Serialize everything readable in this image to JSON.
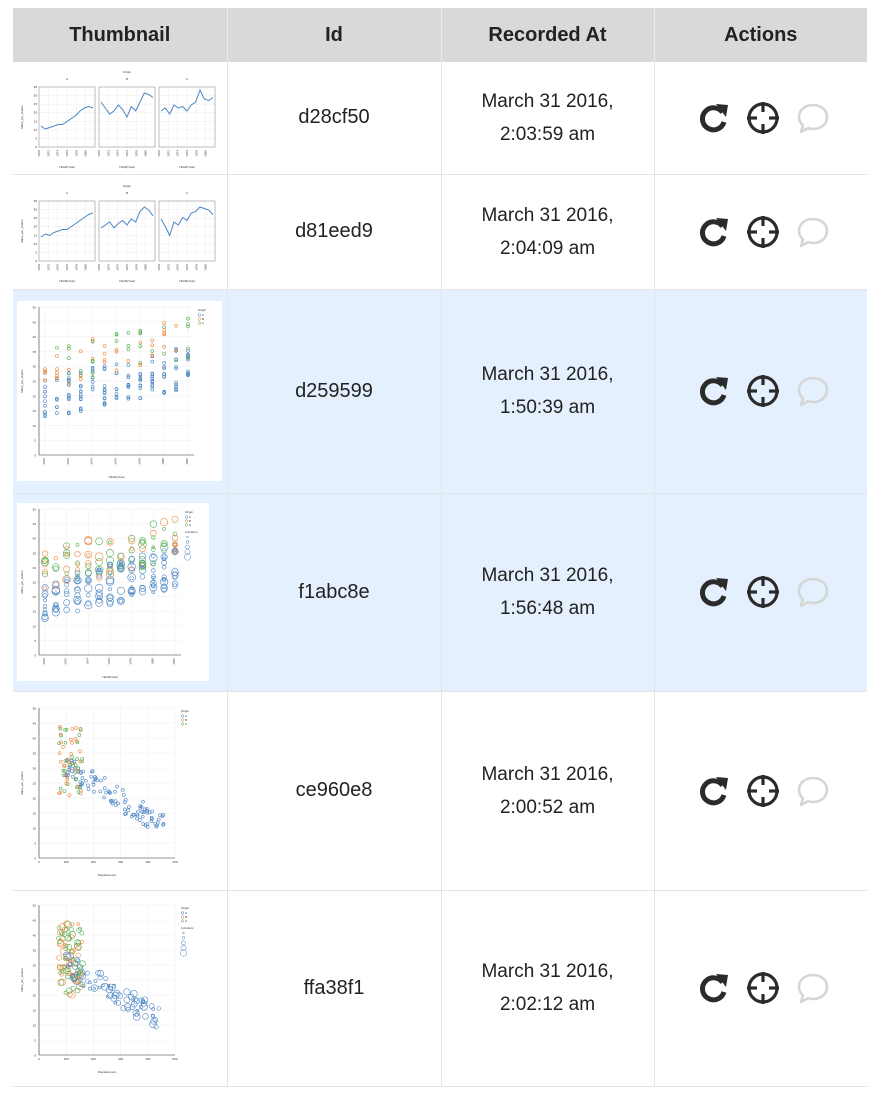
{
  "table": {
    "headers": [
      "Thumbnail",
      "Id",
      "Recorded At",
      "Actions"
    ],
    "rows": [
      {
        "id": "d28cf50",
        "date": "March 31 2016,",
        "time": "2:03:59 am",
        "thumbnail": "faceted-line-chart",
        "selected": false
      },
      {
        "id": "d81eed9",
        "date": "March 31 2016,",
        "time": "2:04:09 am",
        "thumbnail": "faceted-line-chart",
        "selected": false
      },
      {
        "id": "d259599",
        "date": "March 31 2016,",
        "time": "1:50:39 am",
        "thumbnail": "strip-scatter-by-year",
        "selected": true
      },
      {
        "id": "f1abc8e",
        "date": "March 31 2016,",
        "time": "1:56:48 am",
        "thumbnail": "strip-scatter-by-year-sized",
        "selected": true
      },
      {
        "id": "ce960e8",
        "date": "March 31 2016,",
        "time": "2:00:52 am",
        "thumbnail": "scatter-displacement",
        "selected": false
      },
      {
        "id": "ffa38f1",
        "date": "March 31 2016,",
        "time": "2:02:12 am",
        "thumbnail": "scatter-displacement-sized",
        "selected": false
      }
    ]
  },
  "actions": {
    "icons": [
      "refresh-icon",
      "crosshair-icon",
      "comment-icon"
    ],
    "colors": {
      "active": "#2b2b2b",
      "disabled": "#d6d6d6"
    }
  },
  "colors": {
    "header_bg": "#d9d9d9",
    "selected_row_bg": "#e4f0fd",
    "series_a": "#4c86c6",
    "series_b": "#f0873a",
    "series_c": "#54ad4f"
  },
  "thumb_text": {
    "origin": "Origin",
    "cylinders": "Cylinders",
    "year_label": "YEAR(Year)",
    "disp_label": "Displacement",
    "mpg_label": "Miles_per_Gallon",
    "facet_a": "A",
    "facet_b": "B",
    "facet_c": "C",
    "y_ticks": [
      "0",
      "5",
      "10",
      "15",
      "20",
      "25",
      "30",
      "35",
      "40",
      "45",
      "50"
    ],
    "x_ticks_disp": [
      "0",
      "100",
      "200",
      "300",
      "400",
      "500"
    ],
    "x_ticks_year": [
      "1970",
      "1972",
      "1974",
      "1976",
      "1978",
      "1980",
      "1982"
    ]
  }
}
